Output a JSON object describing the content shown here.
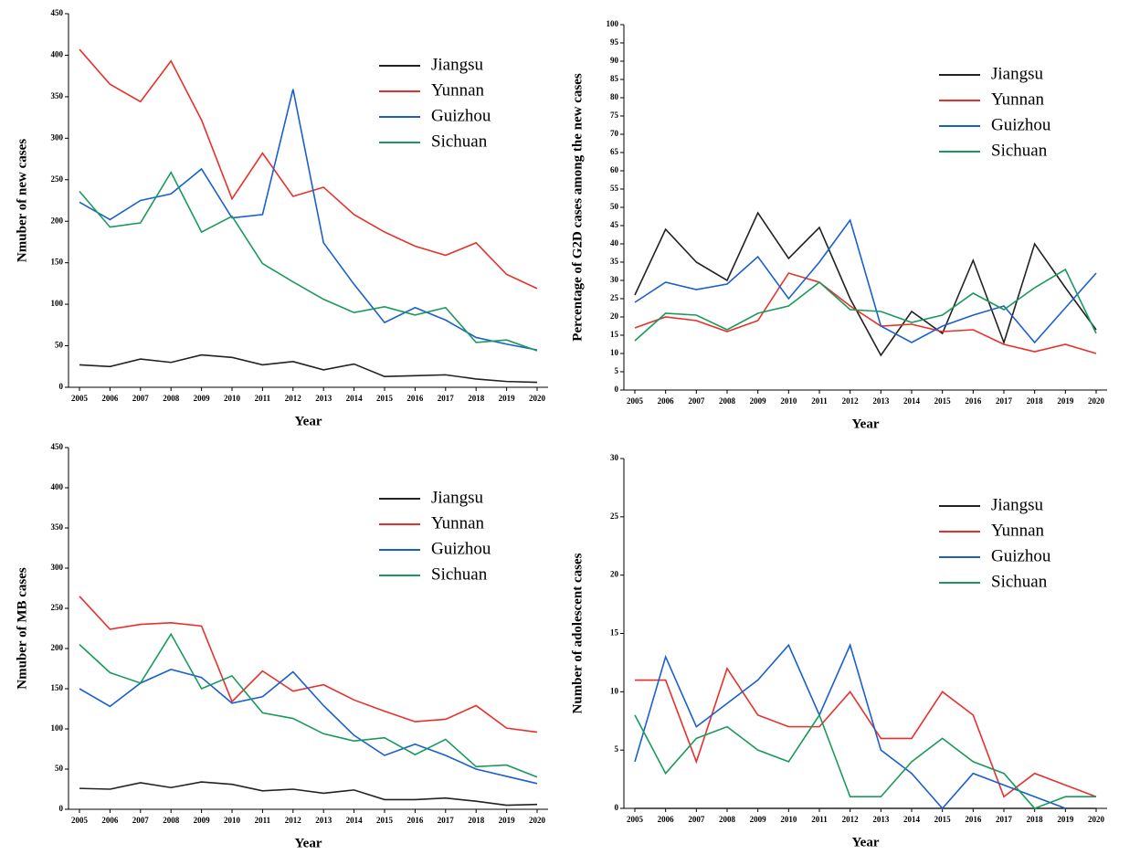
{
  "chart_data": [
    {
      "type": "line",
      "x_label": "Year",
      "y_label": "Nmuber of new cases",
      "categories": [
        "2005",
        "2006",
        "2007",
        "2008",
        "2009",
        "2010",
        "2011",
        "2012",
        "2013",
        "2014",
        "2015",
        "2016",
        "2017",
        "2018",
        "2019",
        "2020"
      ],
      "ylim": [
        0,
        450
      ],
      "yticks": [
        0,
        50,
        100,
        150,
        200,
        250,
        300,
        350,
        400,
        450
      ],
      "series": [
        {
          "name": "Jiangsu",
          "color": "#222222",
          "values": [
            27,
            25,
            34,
            30,
            39,
            36,
            27,
            31,
            21,
            28,
            13,
            14,
            15,
            10,
            7,
            6
          ]
        },
        {
          "name": "Yunnan",
          "color": "#e8302a",
          "values": [
            407,
            365,
            344,
            393,
            322,
            227,
            282,
            230,
            241,
            208,
            187,
            170,
            159,
            174,
            136,
            119
          ]
        },
        {
          "name": "Guizhou",
          "color": "#1a5fd0",
          "values": [
            223,
            202,
            225,
            233,
            263,
            204,
            208,
            359,
            174,
            124,
            78,
            96,
            81,
            60,
            52,
            45
          ]
        },
        {
          "name": "Sichuan",
          "color": "#1a9a5a",
          "values": [
            236,
            193,
            198,
            259,
            187,
            206,
            149,
            127,
            106,
            90,
            97,
            87,
            96,
            54,
            57,
            44
          ]
        }
      ]
    },
    {
      "type": "line",
      "x_label": "Year",
      "y_label": "Percentage of G2D cases among the new cases",
      "categories": [
        "2005",
        "2006",
        "2007",
        "2008",
        "2009",
        "2010",
        "2011",
        "2012",
        "2013",
        "2014",
        "2015",
        "2016",
        "2017",
        "2018",
        "2019",
        "2020"
      ],
      "ylim": [
        0,
        100
      ],
      "yticks": [
        0,
        5,
        10,
        15,
        20,
        25,
        30,
        35,
        40,
        45,
        50,
        55,
        60,
        65,
        70,
        75,
        80,
        85,
        90,
        95,
        100
      ],
      "series": [
        {
          "name": "Jiangsu",
          "color": "#222222",
          "values": [
            26,
            44,
            35,
            30,
            48.5,
            36,
            44.5,
            25,
            9.5,
            21.5,
            15.5,
            35.5,
            13,
            40,
            28,
            16.5
          ]
        },
        {
          "name": "Yunnan",
          "color": "#e8302a",
          "values": [
            17,
            20,
            19,
            16,
            19,
            32,
            29.5,
            23,
            17.5,
            18,
            16,
            16.5,
            12.5,
            10.5,
            12.5,
            10
          ]
        },
        {
          "name": "Guizhou",
          "color": "#1a5fd0",
          "values": [
            24,
            29.5,
            27.5,
            29,
            36.5,
            25,
            35,
            46.5,
            17.5,
            13,
            17.5,
            20.5,
            23,
            13,
            22.5,
            32
          ]
        },
        {
          "name": "Sichuan",
          "color": "#1a9a5a",
          "values": [
            13.5,
            21,
            20.5,
            16.5,
            21,
            23,
            29.5,
            22,
            21.5,
            18.5,
            20.5,
            26.5,
            22,
            28,
            33,
            15.5
          ]
        }
      ]
    },
    {
      "type": "line",
      "x_label": "Year",
      "y_label": "Nmuber of MB cases",
      "categories": [
        "2005",
        "2006",
        "2007",
        "2008",
        "2009",
        "2010",
        "2011",
        "2012",
        "2013",
        "2014",
        "2015",
        "2016",
        "2017",
        "2018",
        "2019",
        "2020"
      ],
      "ylim": [
        0,
        450
      ],
      "yticks": [
        0,
        50,
        100,
        150,
        200,
        250,
        300,
        350,
        400,
        450
      ],
      "series": [
        {
          "name": "Jiangsu",
          "color": "#222222",
          "values": [
            26,
            25,
            33,
            27,
            34,
            31,
            23,
            25,
            20,
            24,
            12,
            12,
            14,
            10,
            5,
            6
          ]
        },
        {
          "name": "Yunnan",
          "color": "#e8302a",
          "values": [
            265,
            224,
            230,
            232,
            228,
            134,
            172,
            147,
            155,
            136,
            122,
            109,
            112,
            129,
            101,
            96
          ]
        },
        {
          "name": "Guizhou",
          "color": "#1a5fd0",
          "values": [
            150,
            128,
            157,
            174,
            164,
            132,
            140,
            171,
            129,
            92,
            67,
            81,
            67,
            50,
            41,
            32
          ]
        },
        {
          "name": "Sichuan",
          "color": "#1a9a5a",
          "values": [
            205,
            170,
            157,
            218,
            150,
            166,
            120,
            113,
            94,
            85,
            89,
            68,
            87,
            53,
            55,
            40
          ]
        }
      ]
    },
    {
      "type": "line",
      "x_label": "Year",
      "y_label": "Number of adolescent cases",
      "categories": [
        "2005",
        "2006",
        "2007",
        "2008",
        "2009",
        "2010",
        "2011",
        "2012",
        "2013",
        "2014",
        "2015",
        "2016",
        "2017",
        "2018",
        "2019",
        "2020"
      ],
      "ylim": [
        0,
        30
      ],
      "yticks": [
        0,
        5,
        10,
        15,
        20,
        25,
        30
      ],
      "series": [
        {
          "name": "Jiangsu",
          "color": "#222222",
          "values": [
            0,
            0,
            0,
            0,
            0,
            0,
            0,
            0,
            0,
            0,
            0,
            0,
            0,
            0,
            0,
            0
          ]
        },
        {
          "name": "Yunnan",
          "color": "#e8302a",
          "values": [
            11,
            11,
            4,
            12,
            8,
            7,
            7,
            10,
            6,
            6,
            10,
            8,
            1,
            3,
            2,
            1
          ]
        },
        {
          "name": "Guizhou",
          "color": "#1a5fd0",
          "values": [
            4,
            13,
            7,
            9,
            11,
            14,
            8,
            14,
            5,
            3,
            0,
            3,
            2,
            1,
            0,
            null
          ]
        },
        {
          "name": "Sichuan",
          "color": "#1a9a5a",
          "values": [
            8,
            3,
            6,
            7,
            5,
            4,
            8,
            1,
            1,
            4,
            6,
            4,
            3,
            0,
            1,
            1
          ]
        }
      ]
    }
  ]
}
